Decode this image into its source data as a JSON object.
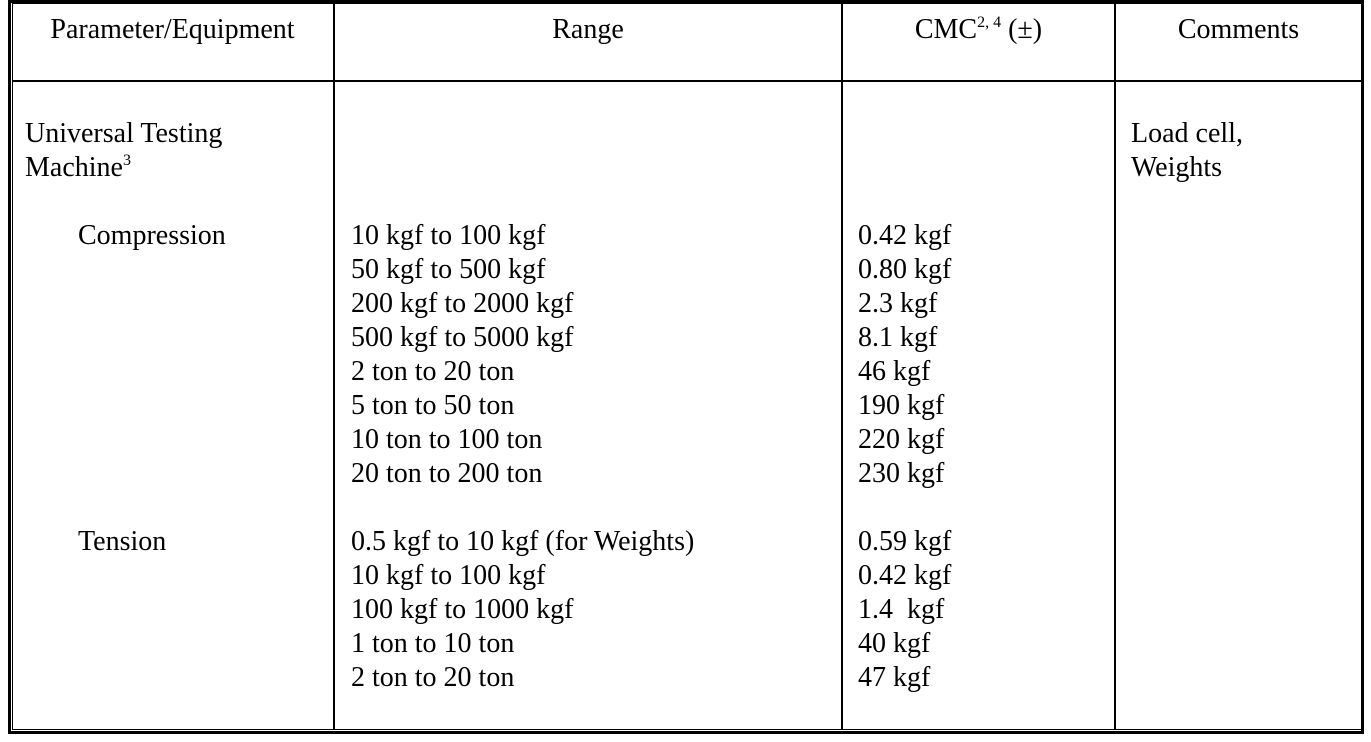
{
  "headers": {
    "param": "Parameter/Equipment",
    "range": "Range",
    "cmc": "CMC",
    "cmc_sup": "2, 4",
    "cmc_suffix": " (±)",
    "comments": "Comments"
  },
  "equipment": {
    "name_line1": "Universal Testing",
    "name_line2": "Machine",
    "name_sup": "3",
    "comments_line1": "Load cell,",
    "comments_line2": "Weights"
  },
  "groups": [
    {
      "label": "Compression",
      "rows": [
        {
          "range": "10 kgf to 100 kgf",
          "cmc": "0.42 kgf"
        },
        {
          "range": "50 kgf to 500 kgf",
          "cmc": "0.80 kgf"
        },
        {
          "range": "200 kgf to 2000 kgf",
          "cmc": "2.3 kgf"
        },
        {
          "range": "500 kgf to 5000 kgf",
          "cmc": "8.1 kgf"
        },
        {
          "range": "2 ton to 20 ton",
          "cmc": "46 kgf"
        },
        {
          "range": "5 ton to 50 ton",
          "cmc": "190 kgf"
        },
        {
          "range": "10 ton to 100 ton",
          "cmc": "220 kgf"
        },
        {
          "range": "20 ton to 200 ton",
          "cmc": "230 kgf"
        }
      ]
    },
    {
      "label": "Tension",
      "rows": [
        {
          "range": "0.5 kgf to 10 kgf (for Weights)",
          "cmc": "0.59 kgf"
        },
        {
          "range": "10 kgf to 100 kgf",
          "cmc": "0.42 kgf"
        },
        {
          "range": "100 kgf to 1000 kgf",
          "cmc": "1.4  kgf"
        },
        {
          "range": "1 ton to 10 ton",
          "cmc": "40 kgf"
        },
        {
          "range": "2 ton to 20 ton",
          "cmc": "47 kgf"
        }
      ]
    }
  ]
}
